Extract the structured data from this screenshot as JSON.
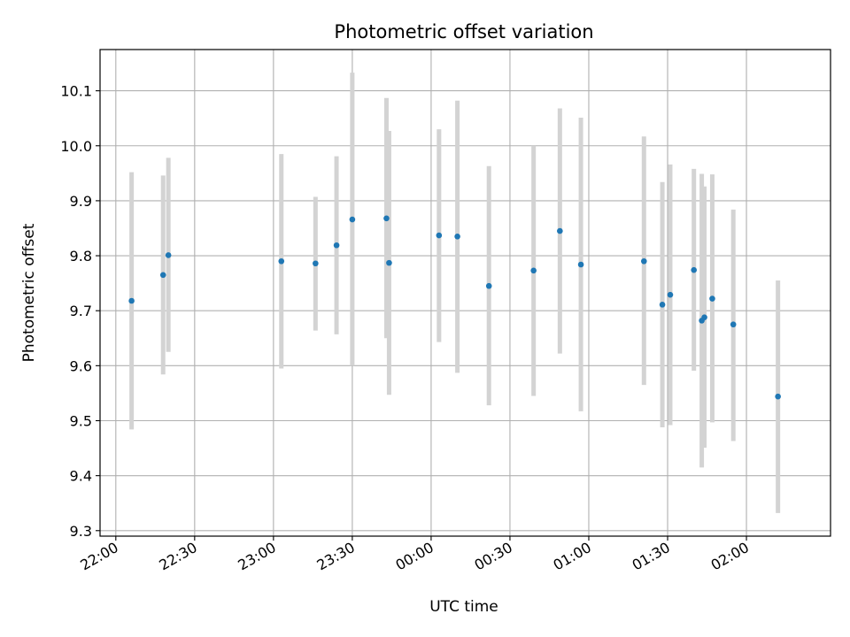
{
  "chart_data": {
    "type": "scatter",
    "title": "Photometric offset variation",
    "xlabel": "UTC time",
    "ylabel": "Photometric offset",
    "grid": true,
    "xlim": [
      "21:54",
      "02:32"
    ],
    "ylim": [
      9.29,
      10.175
    ],
    "x_ticks": [
      "22:00",
      "22:30",
      "23:00",
      "23:30",
      "00:00",
      "00:30",
      "01:00",
      "01:30",
      "02:00"
    ],
    "y_ticks": [
      "9.3",
      "9.4",
      "9.5",
      "9.6",
      "9.7",
      "9.8",
      "9.9",
      "10.0",
      "10.1"
    ],
    "colors": {
      "points": "#1f77b4",
      "errorbars": "#d3d3d3",
      "grid": "#b0b0b0"
    },
    "points": [
      {
        "time": "22:06",
        "y": 9.718,
        "low": 9.484,
        "high": 9.952
      },
      {
        "time": "22:18",
        "y": 9.765,
        "low": 9.584,
        "high": 9.946
      },
      {
        "time": "22:20",
        "y": 9.801,
        "low": 9.625,
        "high": 9.978
      },
      {
        "time": "23:03",
        "y": 9.79,
        "low": 9.595,
        "high": 9.985
      },
      {
        "time": "23:16",
        "y": 9.786,
        "low": 9.664,
        "high": 9.907
      },
      {
        "time": "23:24",
        "y": 9.819,
        "low": 9.657,
        "high": 9.981
      },
      {
        "time": "23:30",
        "y": 9.866,
        "low": 9.6,
        "high": 10.133
      },
      {
        "time": "23:43",
        "y": 9.868,
        "low": 9.65,
        "high": 10.087
      },
      {
        "time": "23:44",
        "y": 9.787,
        "low": 9.547,
        "high": 10.027
      },
      {
        "time": "00:03",
        "y": 9.837,
        "low": 9.643,
        "high": 10.03
      },
      {
        "time": "00:10",
        "y": 9.835,
        "low": 9.587,
        "high": 10.082
      },
      {
        "time": "00:22",
        "y": 9.745,
        "low": 9.528,
        "high": 9.963
      },
      {
        "time": "00:39",
        "y": 9.773,
        "low": 9.545,
        "high": 10.0
      },
      {
        "time": "00:49",
        "y": 9.845,
        "low": 9.622,
        "high": 10.068
      },
      {
        "time": "00:57",
        "y": 9.784,
        "low": 9.517,
        "high": 10.051
      },
      {
        "time": "01:21",
        "y": 9.79,
        "low": 9.565,
        "high": 10.017
      },
      {
        "time": "01:28",
        "y": 9.711,
        "low": 9.488,
        "high": 9.934
      },
      {
        "time": "01:31",
        "y": 9.729,
        "low": 9.492,
        "high": 9.966
      },
      {
        "time": "01:40",
        "y": 9.774,
        "low": 9.591,
        "high": 9.958
      },
      {
        "time": "01:43",
        "y": 9.682,
        "low": 9.415,
        "high": 9.949
      },
      {
        "time": "01:44",
        "y": 9.688,
        "low": 9.451,
        "high": 9.926
      },
      {
        "time": "01:47",
        "y": 9.722,
        "low": 9.497,
        "high": 9.948
      },
      {
        "time": "01:55",
        "y": 9.675,
        "low": 9.463,
        "high": 9.884
      },
      {
        "time": "02:12",
        "y": 9.544,
        "low": 9.332,
        "high": 9.755
      }
    ]
  }
}
